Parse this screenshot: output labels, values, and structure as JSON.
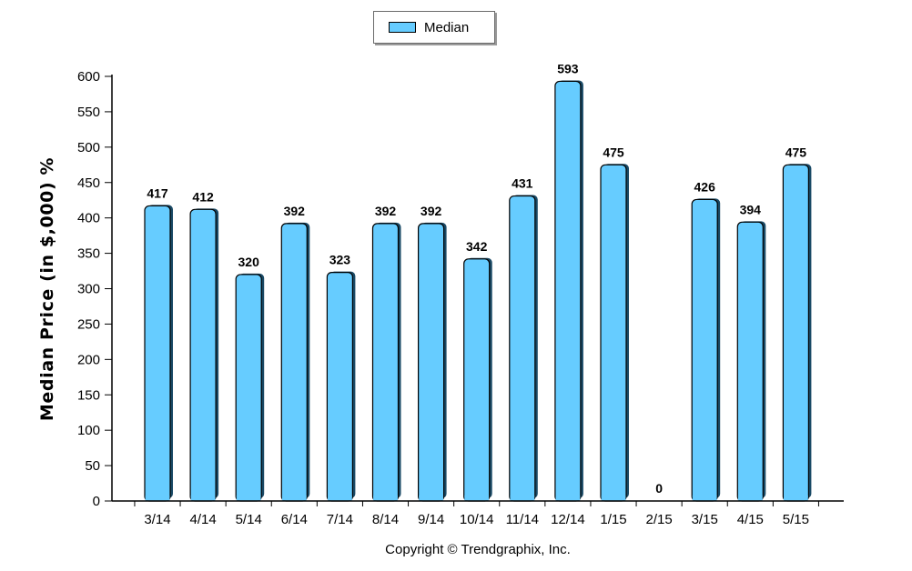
{
  "chart_data": {
    "type": "bar",
    "categories": [
      "3/14",
      "4/14",
      "5/14",
      "6/14",
      "7/14",
      "8/14",
      "9/14",
      "10/14",
      "11/14",
      "12/14",
      "1/15",
      "2/15",
      "3/15",
      "4/15",
      "5/15"
    ],
    "series": [
      {
        "name": "Median",
        "values": [
          417,
          412,
          320,
          392,
          323,
          392,
          392,
          342,
          431,
          593,
          475,
          0,
          426,
          394,
          475
        ],
        "color": "#66ccff"
      }
    ],
    "ylabel": "Median Price (in $,000) %",
    "xlabel": "",
    "ylim": [
      0,
      600
    ],
    "yticks": [
      0,
      50,
      100,
      150,
      200,
      250,
      300,
      350,
      400,
      450,
      500,
      550,
      600
    ],
    "legend_position": "top-center",
    "grid": false,
    "data_labels": true
  },
  "legend": {
    "label": "Median"
  },
  "footer": {
    "copyright": "Copyright © Trendgraphix, Inc."
  }
}
